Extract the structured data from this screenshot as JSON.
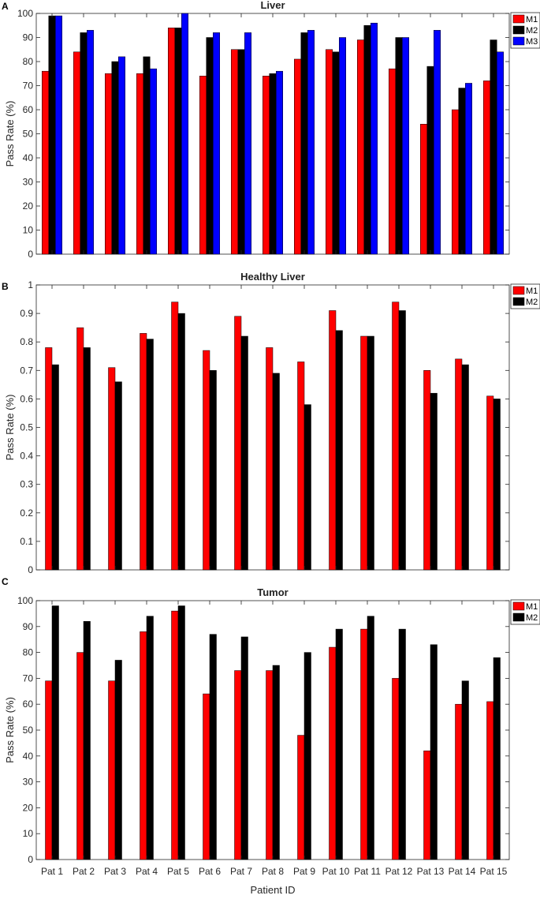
{
  "chart_data": [
    {
      "panel": "A",
      "type": "bar",
      "title": "Liver",
      "xlabel": "",
      "ylabel": "Pass Rate (%)",
      "ylim": [
        0,
        100
      ],
      "yticks": [
        "0",
        "10",
        "20",
        "30",
        "40",
        "50",
        "60",
        "70",
        "80",
        "90",
        "100"
      ],
      "categories": [
        "Pat 1",
        "Pat 2",
        "Pat 3",
        "Pat 4",
        "Pat 5",
        "Pat 6",
        "Pat 7",
        "Pat 8",
        "Pat 9",
        "Pat 10",
        "Pat 11",
        "Pat 12",
        "Pat 13",
        "Pat 14",
        "Pat 15"
      ],
      "show_category_labels": false,
      "series": [
        {
          "name": "M1",
          "color": "#ff0000",
          "values": [
            76,
            84,
            75,
            75,
            94,
            74,
            85,
            74,
            81,
            85,
            89,
            77,
            54,
            60,
            72
          ]
        },
        {
          "name": "M2",
          "color": "#000000",
          "values": [
            99,
            92,
            80,
            82,
            94,
            90,
            85,
            75,
            92,
            84,
            95,
            90,
            78,
            69,
            89
          ]
        },
        {
          "name": "M3",
          "color": "#0000ff",
          "values": [
            99,
            93,
            82,
            77,
            100,
            92,
            92,
            76,
            93,
            90,
            96,
            90,
            93,
            71,
            84
          ]
        }
      ],
      "legend": "top-right"
    },
    {
      "panel": "B",
      "type": "bar",
      "title": "Healthy Liver",
      "xlabel": "",
      "ylabel": "Pass Rate (%)",
      "ylim": [
        0,
        1
      ],
      "yticks": [
        "0",
        "0.1",
        "0.2",
        "0.3",
        "0.4",
        "0.5",
        "0.6",
        "0.7",
        "0.8",
        "0.9",
        "1"
      ],
      "categories": [
        "Pat 1",
        "Pat 2",
        "Pat 3",
        "Pat 4",
        "Pat 5",
        "Pat 6",
        "Pat 7",
        "Pat 8",
        "Pat 9",
        "Pat 10",
        "Pat 11",
        "Pat 12",
        "Pat 13",
        "Pat 14",
        "Pat 15"
      ],
      "show_category_labels": false,
      "series": [
        {
          "name": "M1",
          "color": "#ff0000",
          "values": [
            0.78,
            0.85,
            0.71,
            0.83,
            0.94,
            0.77,
            0.89,
            0.78,
            0.73,
            0.91,
            0.82,
            0.94,
            0.7,
            0.74,
            0.61
          ]
        },
        {
          "name": "M2",
          "color": "#000000",
          "values": [
            0.72,
            0.78,
            0.66,
            0.81,
            0.9,
            0.7,
            0.82,
            0.69,
            0.58,
            0.84,
            0.82,
            0.91,
            0.62,
            0.72,
            0.6
          ]
        }
      ],
      "legend": "top-right"
    },
    {
      "panel": "C",
      "type": "bar",
      "title": "Tumor",
      "xlabel": "Patient ID",
      "ylabel": "Pass Rate (%)",
      "ylim": [
        0,
        100
      ],
      "yticks": [
        "0",
        "10",
        "20",
        "30",
        "40",
        "50",
        "60",
        "70",
        "80",
        "90",
        "100"
      ],
      "categories": [
        "Pat 1",
        "Pat 2",
        "Pat 3",
        "Pat 4",
        "Pat 5",
        "Pat 6",
        "Pat 7",
        "Pat 8",
        "Pat 9",
        "Pat 10",
        "Pat 11",
        "Pat 12",
        "Pat 13",
        "Pat 14",
        "Pat 15"
      ],
      "show_category_labels": true,
      "series": [
        {
          "name": "M1",
          "color": "#ff0000",
          "values": [
            69,
            80,
            69,
            88,
            96,
            64,
            73,
            73,
            48,
            82,
            89,
            70,
            42,
            60,
            61
          ]
        },
        {
          "name": "M2",
          "color": "#000000",
          "values": [
            98,
            92,
            77,
            94,
            98,
            87,
            86,
            75,
            80,
            89,
            94,
            89,
            83,
            69,
            78
          ]
        }
      ],
      "legend": "top-right"
    }
  ]
}
